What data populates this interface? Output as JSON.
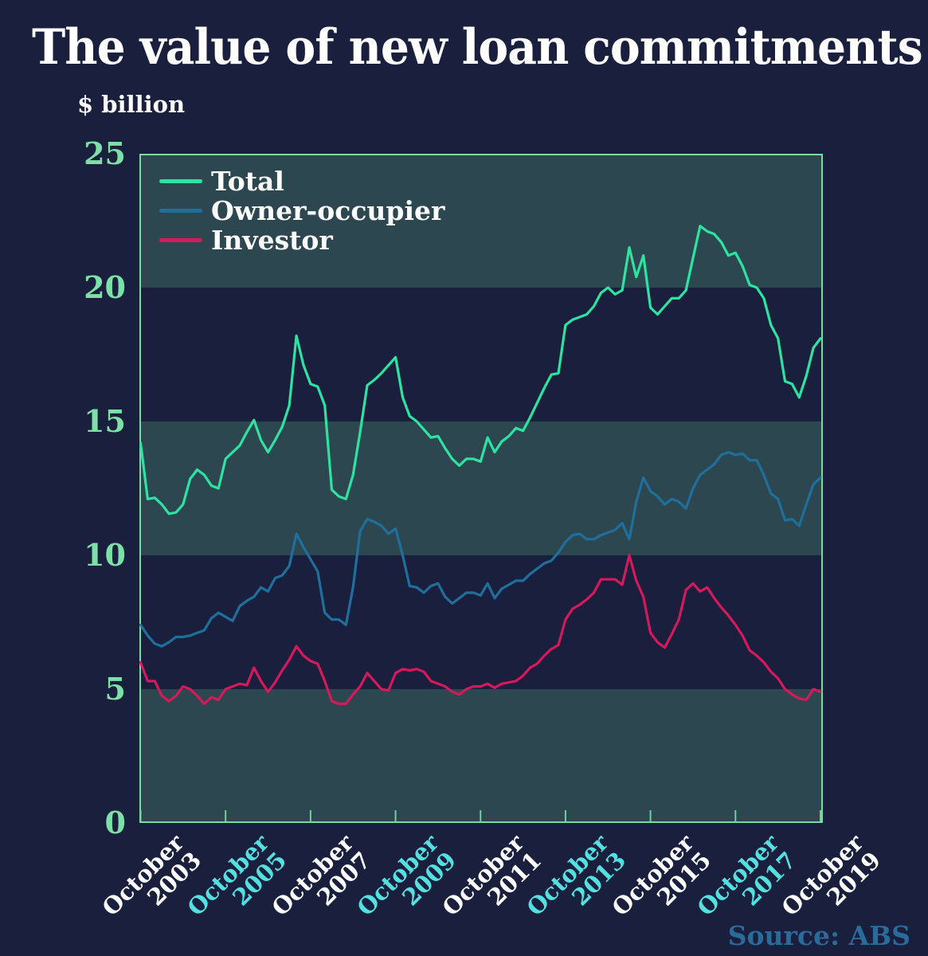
{
  "title": "The value of new loan commitments",
  "source": "Source: ABS",
  "colors": {
    "background": "#1a1f3d",
    "band": "#2d4751",
    "plot_border": "#7cd9a5",
    "tick": "#6fcf9f",
    "y_label": "#7de0a8",
    "title_text": "#ffffff",
    "white_label": "#ffffff",
    "cyan_label": "#53e0e0",
    "source_text": "#2a6b9a"
  },
  "y_axis": {
    "unit_label": "$ billion",
    "ticks": [
      25,
      20,
      15,
      10,
      5,
      0
    ]
  },
  "x_axis": {
    "labels": [
      {
        "month": "October",
        "year": "2003",
        "color": "#ffffff"
      },
      {
        "month": "October",
        "year": "2005",
        "color": "#53e0e0"
      },
      {
        "month": "October",
        "year": "2007",
        "color": "#ffffff"
      },
      {
        "month": "October",
        "year": "2009",
        "color": "#53e0e0"
      },
      {
        "month": "October",
        "year": "2011",
        "color": "#ffffff"
      },
      {
        "month": "October",
        "year": "2013",
        "color": "#53e0e0"
      },
      {
        "month": "October",
        "year": "2015",
        "color": "#ffffff"
      },
      {
        "month": "October",
        "year": "2017",
        "color": "#53e0e0"
      },
      {
        "month": "October",
        "year": "2019",
        "color": "#ffffff"
      }
    ]
  },
  "legend": [
    {
      "label": "Total",
      "color": "#2de3a1"
    },
    {
      "label": "Owner-occupier",
      "color": "#1f6f9d"
    },
    {
      "label": "Investor",
      "color": "#d6185c"
    }
  ],
  "chart_data": {
    "type": "line",
    "title": "The value of new loan commitments",
    "ylabel": "$ billion",
    "ylim": [
      0,
      25
    ],
    "grid": "horizontal bands every 5 units (teal stripes at 0-5, 10-15, 20-25)",
    "legend_position": "top-left inside plot",
    "x_start": "October 2003",
    "x_end": "October 2019",
    "interval_months": 2,
    "x_tick_labels": [
      "October 2003",
      "October 2005",
      "October 2007",
      "October 2009",
      "October 2011",
      "October 2013",
      "October 2015",
      "October 2017",
      "October 2019"
    ],
    "series": [
      {
        "name": "Total",
        "color": "#2de3a1",
        "values": [
          14.2,
          12.1,
          12.15,
          11.9,
          11.55,
          11.6,
          11.9,
          12.85,
          13.2,
          13.0,
          12.6,
          12.5,
          13.6,
          13.85,
          14.1,
          14.6,
          15.05,
          14.3,
          13.85,
          14.3,
          14.8,
          15.6,
          18.2,
          17.1,
          16.4,
          16.3,
          15.6,
          12.45,
          12.2,
          12.1,
          13.0,
          14.6,
          16.35,
          16.55,
          16.8,
          17.1,
          17.4,
          15.9,
          15.2,
          15.0,
          14.7,
          14.4,
          14.45,
          14.0,
          13.6,
          13.35,
          13.6,
          13.6,
          13.5,
          14.4,
          13.85,
          14.25,
          14.45,
          14.75,
          14.65,
          15.15,
          15.7,
          16.25,
          16.75,
          16.8,
          18.6,
          18.8,
          18.9,
          19.0,
          19.3,
          19.8,
          20.0,
          19.75,
          19.9,
          21.5,
          20.4,
          21.2,
          19.25,
          19.0,
          19.3,
          19.6,
          19.6,
          19.9,
          21.1,
          22.3,
          22.1,
          22.0,
          21.7,
          21.2,
          21.3,
          20.8,
          20.1,
          20.0,
          19.6,
          18.6,
          18.1,
          16.5,
          16.4,
          15.9,
          16.7,
          17.75,
          18.1
        ]
      },
      {
        "name": "Owner-occupier",
        "color": "#1f6f9d",
        "values": [
          7.4,
          7.0,
          6.7,
          6.6,
          6.75,
          6.95,
          6.95,
          7.0,
          7.1,
          7.2,
          7.65,
          7.85,
          7.7,
          7.55,
          8.1,
          8.3,
          8.45,
          8.8,
          8.65,
          9.15,
          9.25,
          9.6,
          10.8,
          10.3,
          9.85,
          9.4,
          7.85,
          7.6,
          7.6,
          7.4,
          8.8,
          10.9,
          11.35,
          11.25,
          11.1,
          10.8,
          11.0,
          10.0,
          8.85,
          8.8,
          8.6,
          8.85,
          8.95,
          8.45,
          8.2,
          8.4,
          8.6,
          8.6,
          8.5,
          8.95,
          8.4,
          8.75,
          8.9,
          9.05,
          9.05,
          9.3,
          9.5,
          9.7,
          9.8,
          10.1,
          10.5,
          10.75,
          10.8,
          10.6,
          10.6,
          10.75,
          10.85,
          10.95,
          11.2,
          10.6,
          12.0,
          12.9,
          12.4,
          12.2,
          11.9,
          12.1,
          12.0,
          11.75,
          12.5,
          13.0,
          13.2,
          13.4,
          13.75,
          13.85,
          13.75,
          13.8,
          13.55,
          13.55,
          13.0,
          12.3,
          12.1,
          11.3,
          11.35,
          11.1,
          11.9,
          12.65,
          12.9
        ]
      },
      {
        "name": "Investor",
        "color": "#d6185c",
        "values": [
          6.0,
          5.3,
          5.3,
          4.75,
          4.55,
          4.75,
          5.1,
          5.0,
          4.75,
          4.45,
          4.7,
          4.6,
          5.0,
          5.1,
          5.2,
          5.15,
          5.8,
          5.3,
          4.9,
          5.25,
          5.7,
          6.1,
          6.6,
          6.25,
          6.05,
          5.95,
          5.3,
          4.55,
          4.45,
          4.45,
          4.8,
          5.1,
          5.6,
          5.3,
          5.0,
          4.95,
          5.6,
          5.75,
          5.7,
          5.75,
          5.65,
          5.3,
          5.2,
          5.1,
          4.9,
          4.8,
          5.0,
          5.1,
          5.1,
          5.2,
          5.05,
          5.2,
          5.25,
          5.3,
          5.5,
          5.8,
          5.95,
          6.25,
          6.5,
          6.65,
          7.6,
          8.0,
          8.15,
          8.35,
          8.6,
          9.1,
          9.1,
          9.1,
          8.9,
          10.0,
          9.05,
          8.45,
          7.1,
          6.75,
          6.55,
          7.05,
          7.6,
          8.7,
          8.95,
          8.65,
          8.8,
          8.4,
          8.05,
          7.75,
          7.4,
          7.0,
          6.45,
          6.25,
          6.0,
          5.65,
          5.4,
          5.0,
          4.8,
          4.65,
          4.6,
          5.0,
          4.9
        ]
      }
    ]
  }
}
